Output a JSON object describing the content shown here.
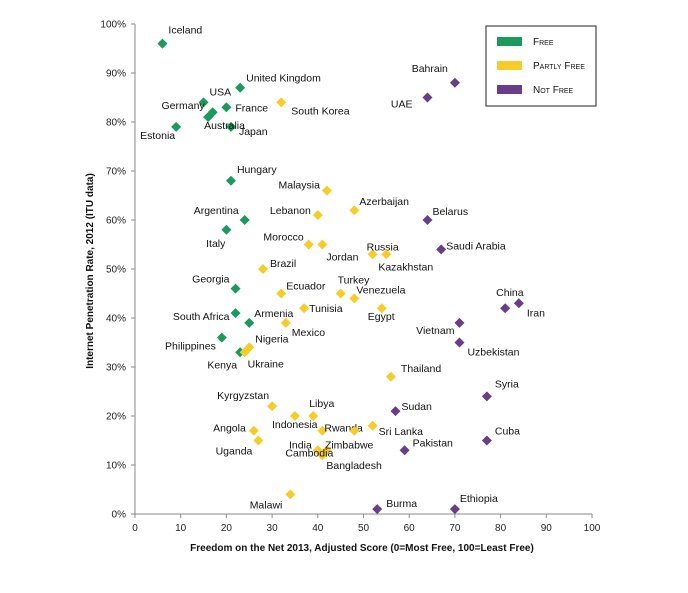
{
  "chart_data": {
    "type": "scatter",
    "xlabel": "Freedom on the Net 2013, Adjusted Score (0=Most Free, 100=Least Free)",
    "ylabel": "Internet Penetration Rate, 2012 (ITU data)",
    "xlim": [
      0,
      100
    ],
    "ylim": [
      0,
      100
    ],
    "x_ticks": [
      "0",
      "10",
      "20",
      "30",
      "40",
      "50",
      "60",
      "70",
      "80",
      "90",
      "100"
    ],
    "y_ticks": [
      "0%",
      "10%",
      "20%",
      "30%",
      "40%",
      "50%",
      "60%",
      "70%",
      "80%",
      "90%",
      "100%"
    ],
    "grid": false,
    "legend_position": "top-right",
    "series": [
      {
        "name": "Free",
        "color": "#1a9a5c",
        "points": [
          {
            "label": "Iceland",
            "x": 6,
            "y": 96
          },
          {
            "label": "USA",
            "x": 15,
            "y": 84
          },
          {
            "label": "United Kingdom",
            "x": 23,
            "y": 87
          },
          {
            "label": "Germany",
            "x": 17,
            "y": 82
          },
          {
            "label": "France",
            "x": 20,
            "y": 83
          },
          {
            "label": "Japan",
            "x": 21,
            "y": 79
          },
          {
            "label": "Estonia",
            "x": 9,
            "y": 79
          },
          {
            "label": "Australia",
            "x": 16,
            "y": 81
          },
          {
            "label": "Hungary",
            "x": 21,
            "y": 68
          },
          {
            "label": "Argentina",
            "x": 24,
            "y": 60
          },
          {
            "label": "Italy",
            "x": 20,
            "y": 58
          },
          {
            "label": "Georgia",
            "x": 22,
            "y": 46
          },
          {
            "label": "South Africa",
            "x": 22,
            "y": 41
          },
          {
            "label": "Philippines",
            "x": 19,
            "y": 36
          },
          {
            "label": "Kenya",
            "x": 23,
            "y": 33
          },
          {
            "label": "Armenia",
            "x": 25,
            "y": 39
          }
        ]
      },
      {
        "name": "Partly Free",
        "color": "#f5cc2a",
        "points": [
          {
            "label": "South Korea",
            "x": 32,
            "y": 84
          },
          {
            "label": "Malaysia",
            "x": 42,
            "y": 66
          },
          {
            "label": "Lebanon",
            "x": 40,
            "y": 61
          },
          {
            "label": "Azerbaijan",
            "x": 48,
            "y": 62
          },
          {
            "label": "Morocco",
            "x": 38,
            "y": 55
          },
          {
            "label": "Jordan",
            "x": 41,
            "y": 55
          },
          {
            "label": "Russia",
            "x": 52,
            "y": 53
          },
          {
            "label": "Kazakhstan",
            "x": 55,
            "y": 53
          },
          {
            "label": "Brazil",
            "x": 28,
            "y": 50
          },
          {
            "label": "Ecuador",
            "x": 32,
            "y": 45
          },
          {
            "label": "Turkey",
            "x": 45,
            "y": 45
          },
          {
            "label": "Venezuela",
            "x": 48,
            "y": 44
          },
          {
            "label": "Egypt",
            "x": 54,
            "y": 42
          },
          {
            "label": "Tunisia",
            "x": 37,
            "y": 42
          },
          {
            "label": "Mexico",
            "x": 33,
            "y": 39
          },
          {
            "label": "Nigeria",
            "x": 25,
            "y": 34
          },
          {
            "label": "Ukraine",
            "x": 24,
            "y": 33
          },
          {
            "label": "Thailand",
            "x": 56,
            "y": 28
          },
          {
            "label": "Kyrgyzstan",
            "x": 30,
            "y": 22
          },
          {
            "label": "Libya",
            "x": 39,
            "y": 20
          },
          {
            "label": "Indonesia",
            "x": 35,
            "y": 20
          },
          {
            "label": "Rwanda",
            "x": 41,
            "y": 17
          },
          {
            "label": "Sri Lanka",
            "x": 52,
            "y": 18
          },
          {
            "label": "Angola",
            "x": 26,
            "y": 17
          },
          {
            "label": "Uganda",
            "x": 27,
            "y": 15
          },
          {
            "label": "India",
            "x": 40,
            "y": 13
          },
          {
            "label": "Zimbabwe",
            "x": 42,
            "y": 13
          },
          {
            "label": "Bangladesh",
            "x": 41,
            "y": 12
          },
          {
            "label": "Cambodia",
            "x": 48,
            "y": 17
          },
          {
            "label": "Malawi",
            "x": 34,
            "y": 4
          }
        ]
      },
      {
        "name": "Not Free",
        "color": "#6a3d8a",
        "points": [
          {
            "label": "Bahrain",
            "x": 70,
            "y": 88
          },
          {
            "label": "UAE",
            "x": 64,
            "y": 85
          },
          {
            "label": "Belarus",
            "x": 64,
            "y": 60
          },
          {
            "label": "Saudi Arabia",
            "x": 67,
            "y": 54
          },
          {
            "label": "China",
            "x": 81,
            "y": 42
          },
          {
            "label": "Iran",
            "x": 84,
            "y": 43
          },
          {
            "label": "Vietnam",
            "x": 71,
            "y": 39
          },
          {
            "label": "Uzbekistan",
            "x": 71,
            "y": 35
          },
          {
            "label": "Syria",
            "x": 77,
            "y": 24
          },
          {
            "label": "Sudan",
            "x": 57,
            "y": 21
          },
          {
            "label": "Cuba",
            "x": 77,
            "y": 15
          },
          {
            "label": "Pakistan",
            "x": 59,
            "y": 13
          },
          {
            "label": "Burma",
            "x": 53,
            "y": 1
          },
          {
            "label": "Ethiopia",
            "x": 70,
            "y": 1
          }
        ]
      }
    ]
  }
}
